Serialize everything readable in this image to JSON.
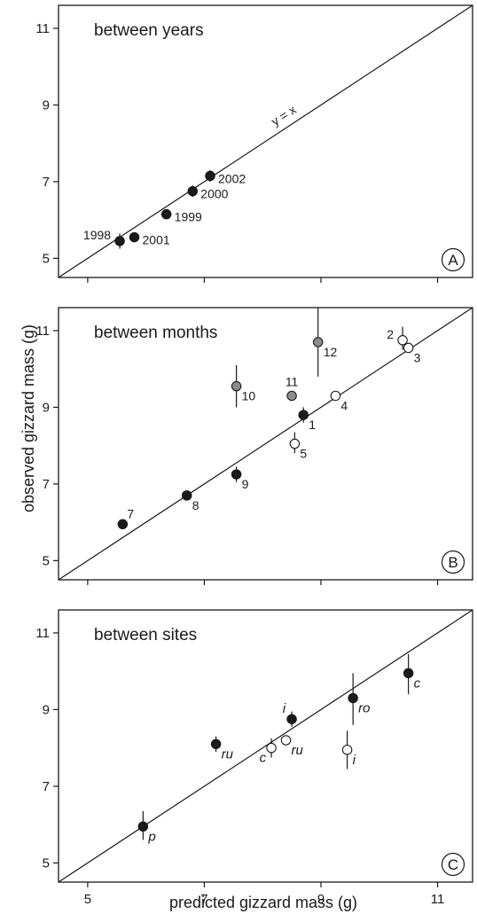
{
  "chart_data": [
    {
      "type": "scatter",
      "title": "between years",
      "panel_label": "A",
      "xlim": [
        4.5,
        11.6
      ],
      "ylim": [
        4.5,
        11.6
      ],
      "ticks": [
        5,
        7,
        9,
        11
      ],
      "show_x_tick_labels": false,
      "reference_line_label": "y = x",
      "points": [
        {
          "label": "1998",
          "x": 5.55,
          "y": 5.45,
          "fill": "black",
          "err_lo": 5.25,
          "err_hi": 5.65,
          "label_pos": "left"
        },
        {
          "label": "2001",
          "x": 5.8,
          "y": 5.55,
          "fill": "black",
          "label_pos": "right"
        },
        {
          "label": "1999",
          "x": 6.35,
          "y": 6.15,
          "fill": "black",
          "label_pos": "right"
        },
        {
          "label": "2000",
          "x": 6.8,
          "y": 6.75,
          "fill": "black",
          "err_lo": 6.6,
          "err_hi": 6.9,
          "label_pos": "right"
        },
        {
          "label": "2002",
          "x": 7.1,
          "y": 7.15,
          "fill": "black",
          "err_lo": 7.0,
          "err_hi": 7.3,
          "label_pos": "right"
        }
      ]
    },
    {
      "type": "scatter",
      "title": "between months",
      "panel_label": "B",
      "xlim": [
        4.5,
        11.6
      ],
      "ylim": [
        4.5,
        11.6
      ],
      "ticks": [
        5,
        7,
        9,
        11
      ],
      "show_x_tick_labels": false,
      "reference_line_label": "",
      "points": [
        {
          "label": "7",
          "x": 5.6,
          "y": 5.95,
          "fill": "black",
          "label_pos": "upright"
        },
        {
          "label": "8",
          "x": 6.7,
          "y": 6.7,
          "fill": "black",
          "label_pos": "lowright"
        },
        {
          "label": "9",
          "x": 7.55,
          "y": 7.25,
          "fill": "black",
          "err_lo": 7.05,
          "err_hi": 7.45,
          "label_pos": "lowright"
        },
        {
          "label": "10",
          "x": 7.55,
          "y": 9.55,
          "fill": "grey",
          "err_lo": 9.0,
          "err_hi": 10.1,
          "label_pos": "lowright"
        },
        {
          "label": "11",
          "x": 8.5,
          "y": 9.3,
          "fill": "grey",
          "label_pos": "up"
        },
        {
          "label": "12",
          "x": 8.95,
          "y": 10.7,
          "fill": "grey",
          "err_lo": 9.8,
          "err_hi": 11.6,
          "label_pos": "lowright"
        },
        {
          "label": "1",
          "x": 8.7,
          "y": 8.8,
          "fill": "black",
          "err_lo": 8.6,
          "err_hi": 9.0,
          "label_pos": "lowright"
        },
        {
          "label": "5",
          "x": 8.55,
          "y": 8.05,
          "fill": "white",
          "err_lo": 7.8,
          "err_hi": 8.35,
          "label_pos": "lowright"
        },
        {
          "label": "4",
          "x": 9.25,
          "y": 9.3,
          "fill": "white",
          "label_pos": "lowright"
        },
        {
          "label": "2",
          "x": 10.4,
          "y": 10.75,
          "fill": "white",
          "err_lo": 10.5,
          "err_hi": 11.1,
          "label_pos": "left"
        },
        {
          "label": "3",
          "x": 10.5,
          "y": 10.55,
          "fill": "white",
          "label_pos": "lowright"
        }
      ]
    },
    {
      "type": "scatter",
      "title": "between sites",
      "panel_label": "C",
      "xlim": [
        4.5,
        11.6
      ],
      "ylim": [
        4.5,
        11.6
      ],
      "ticks": [
        5,
        7,
        9,
        11
      ],
      "show_x_tick_labels": true,
      "xlabel": "predicted gizzard mass (g)",
      "reference_line_label": "",
      "points": [
        {
          "label": "p",
          "x": 5.95,
          "y": 5.95,
          "fill": "black",
          "err_lo": 5.6,
          "err_hi": 6.35,
          "label_pos": "lowright"
        },
        {
          "label": "ru",
          "x": 7.2,
          "y": 8.1,
          "fill": "black",
          "err_lo": 7.9,
          "err_hi": 8.3,
          "label_pos": "lowright"
        },
        {
          "label": "c",
          "x": 8.15,
          "y": 8.0,
          "fill": "white",
          "err_lo": 7.75,
          "err_hi": 8.25,
          "label_pos": "lowleft"
        },
        {
          "label": "ru",
          "x": 8.4,
          "y": 8.2,
          "fill": "white",
          "label_pos": "lowright"
        },
        {
          "label": "i",
          "x": 8.5,
          "y": 8.75,
          "fill": "black",
          "err_lo": 8.55,
          "err_hi": 8.95,
          "label_pos": "upleft"
        },
        {
          "label": "i",
          "x": 9.45,
          "y": 7.95,
          "fill": "white",
          "err_lo": 7.45,
          "err_hi": 8.45,
          "label_pos": "lowright"
        },
        {
          "label": "ro",
          "x": 9.55,
          "y": 9.3,
          "fill": "black",
          "err_lo": 8.6,
          "err_hi": 9.95,
          "label_pos": "lowright"
        },
        {
          "label": "c",
          "x": 10.5,
          "y": 9.95,
          "fill": "black",
          "err_lo": 9.4,
          "err_hi": 10.45,
          "label_pos": "lowright"
        }
      ]
    }
  ],
  "ylabel": "observed gizzard mass (g)",
  "colors": {
    "black": "#1a1a1a",
    "grey": "#8c8c8c",
    "white": "#ffffff",
    "axis": "#1a1a1a"
  }
}
